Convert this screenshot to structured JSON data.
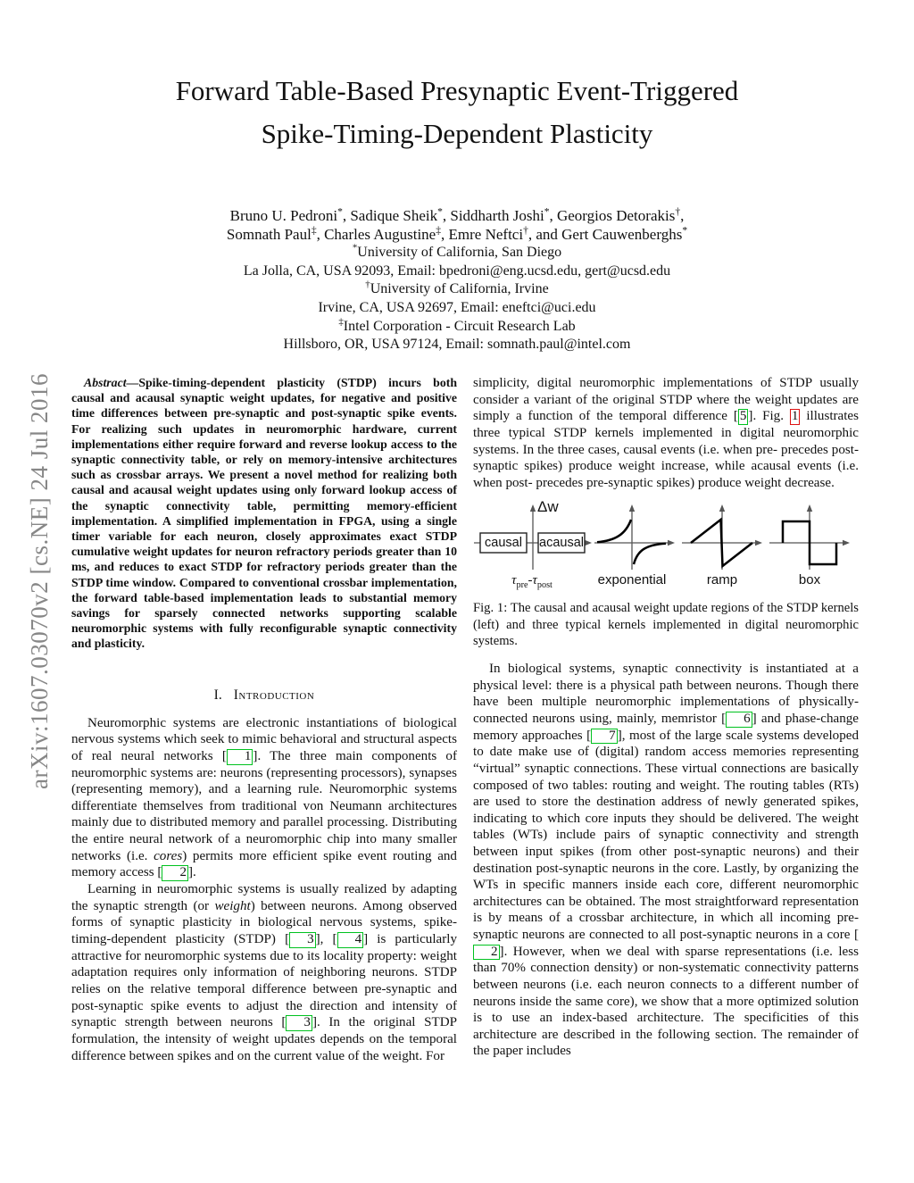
{
  "watermark": "arXiv:1607.03070v2  [cs.NE]  24 Jul 2016",
  "title_line1": "Forward Table-Based Presynaptic Event-Triggered",
  "title_line2": "Spike-Timing-Dependent Plasticity",
  "authors": {
    "lines": [
      [
        {
          "t": "Bruno U. Pedroni"
        },
        {
          "t": "*",
          "s": "sup"
        },
        {
          "t": ", Sadique Sheik"
        },
        {
          "t": "*",
          "s": "sup"
        },
        {
          "t": ", Siddharth Joshi"
        },
        {
          "t": "*",
          "s": "sup"
        },
        {
          "t": ", Georgios Detorakis"
        },
        {
          "t": "†",
          "s": "sup"
        },
        {
          "t": ","
        }
      ],
      [
        {
          "t": "Somnath Paul"
        },
        {
          "t": "‡",
          "s": "sup"
        },
        {
          "t": ", Charles Augustine"
        },
        {
          "t": "‡",
          "s": "sup"
        },
        {
          "t": ", Emre Neftci"
        },
        {
          "t": "†",
          "s": "sup"
        },
        {
          "t": ", and Gert Cauwenberghs"
        },
        {
          "t": "*",
          "s": "sup"
        }
      ],
      [
        {
          "t": "*",
          "s": "sup"
        },
        {
          "t": "University of California, San Diego"
        }
      ],
      [
        {
          "t": "La Jolla, CA, USA 92093, Email: bpedroni@eng.ucsd.edu, gert@ucsd.edu"
        }
      ],
      [
        {
          "t": "†",
          "s": "sup"
        },
        {
          "t": "University of California, Irvine"
        }
      ],
      [
        {
          "t": "Irvine, CA, USA 92697, Email: eneftci@uci.edu"
        }
      ],
      [
        {
          "t": "‡",
          "s": "sup"
        },
        {
          "t": "Intel Corporation - Circuit Research Lab"
        }
      ],
      [
        {
          "t": "Hillsboro, OR, USA 97124, Email: somnath.paul@intel.com"
        }
      ]
    ]
  },
  "abstract": {
    "segments": [
      {
        "t": "Abstract",
        "s": "bi"
      },
      {
        "t": "—Spike-timing-dependent plasticity (STDP) incurs both causal and acausal synaptic weight updates, for negative and positive time differences between pre-synaptic and post-synaptic spike events. For realizing such updates in neuromorphic hardware, current implementations either require forward and reverse lookup access to the synaptic connectivity table, or rely on memory-intensive architectures such as crossbar arrays. We present a novel method for realizing both causal and acausal weight updates using only forward lookup access of the synaptic connectivity table, permitting memory-efficient implementation. A simplified implementation in FPGA, using a single timer variable for each neuron, closely approximates exact STDP cumulative weight updates for neuron refractory periods greater than 10 ms, and reduces to exact STDP for refractory periods greater than the STDP time window. Compared to conventional crossbar implementation, the forward table-based implementation leads to substantial memory savings for sparsely connected networks supporting scalable neuromorphic systems with fully reconfigurable synaptic connectivity and plasticity."
      }
    ]
  },
  "section1": {
    "number": "I.",
    "title": "Introduction"
  },
  "paragraphs": {
    "intro_p1": [
      {
        "t": "Neuromorphic systems are electronic instantiations of biological nervous systems which seek to mimic behavioral and structural aspects of real neural networks "
      },
      {
        "t": "1",
        "s": "cite"
      },
      {
        "t": ". The three main components of neuromorphic systems are: neurons (representing processors), synapses (representing memory), and a learning rule. Neuromorphic systems differentiate themselves from traditional von Neumann architectures mainly due to distributed memory and parallel processing. Distributing the entire neural network of a neuromorphic chip into many smaller networks (i.e. "
      },
      {
        "t": "cores",
        "s": "i"
      },
      {
        "t": ") permits more efficient spike event routing and memory access "
      },
      {
        "t": "2",
        "s": "cite"
      },
      {
        "t": "."
      }
    ],
    "intro_p2": [
      {
        "t": "Learning in neuromorphic systems is usually realized by adapting the synaptic strength (or "
      },
      {
        "t": "weight",
        "s": "i"
      },
      {
        "t": ") between neurons. Among observed forms of synaptic plasticity in biological nervous systems, spike-timing-dependent plasticity (STDP) "
      },
      {
        "t": "3",
        "s": "cite"
      },
      {
        "t": ", "
      },
      {
        "t": "4",
        "s": "cite"
      },
      {
        "t": " is particularly attractive for neuromorphic systems due to its locality property: weight adaptation requires only information of neighboring neurons. STDP relies on the relative temporal difference between pre-synaptic and post-synaptic spike events to adjust the direction and intensity of synaptic strength between neurons "
      },
      {
        "t": "3",
        "s": "cite"
      },
      {
        "t": ". In the original STDP formulation, the intensity of weight updates depends on the temporal difference between spikes and on the current value of the weight. For"
      }
    ],
    "right_p1": [
      {
        "t": "simplicity, digital neuromorphic implementations of STDP usually consider a variant of the original STDP where the weight updates are simply a function of the temporal difference "
      },
      {
        "t": "5",
        "s": "cite"
      },
      {
        "t": ". Fig. "
      },
      {
        "t": "1",
        "s": "figref"
      },
      {
        "t": " illustrates three typical STDP kernels implemented in digital neuromorphic systems. In the three cases, causal events (i.e. when pre- precedes post-synaptic spikes) produce weight increase, while acausal events (i.e. when post- precedes pre-synaptic spikes) produce weight decrease."
      }
    ],
    "right_p2": [
      {
        "t": "In biological systems, synaptic connectivity is instantiated at a physical level: there is a physical path between neurons. Though there have been multiple neuromorphic implementations of physically-connected neurons using, mainly, memristor "
      },
      {
        "t": "6",
        "s": "cite"
      },
      {
        "t": " and phase-change memory approaches "
      },
      {
        "t": "7",
        "s": "cite"
      },
      {
        "t": ", most of the large scale systems developed to date make use of (digital) random access memories representing “virtual” synaptic connections. These virtual connections are basically composed of two tables: routing and weight. The routing tables (RTs) are used to store the destination address of newly generated spikes, indicating to which core inputs they should be delivered. The weight tables (WTs) include pairs of synaptic connectivity and strength between input spikes (from other post-synaptic neurons) and their destination post-synaptic neurons in the core. Lastly, by organizing the WTs in specific manners inside each core, different neuromorphic architectures can be obtained. The most straightforward representation is by means of a crossbar architecture, in which all incoming pre-synaptic neurons are connected to all post-synaptic neurons in a core "
      },
      {
        "t": "2",
        "s": "cite"
      },
      {
        "t": ". However, when we deal with sparse representations (i.e. less than 70% connection density) or non-systematic connectivity patterns between neurons (i.e. each neuron connects to a different number of neurons inside the same core), we show that a more optimized solution is to use an index-based architecture. The specificities of this architecture are described in the following section. The remainder of the paper includes"
      }
    ]
  },
  "figure": {
    "labels": {
      "dw": "Δw",
      "causal": "causal",
      "acausal": "acausal",
      "tau": [
        {
          "t": "τ",
          "s": "i"
        },
        {
          "t": "pre",
          "s": "sub"
        },
        {
          "t": "-"
        },
        {
          "t": "τ",
          "s": "i"
        },
        {
          "t": "post",
          "s": "sub"
        }
      ],
      "kernel1": "exponential",
      "kernel2": "ramp",
      "kernel3": "box"
    },
    "caption": "Fig. 1: The causal and acausal weight update regions of the STDP kernels (left) and three typical kernels implemented in digital neuromorphic systems."
  },
  "colors": {
    "citation_green": "#00c21f",
    "figref_red": "#dd1111",
    "watermark_gray": "#878787",
    "axis_gray": "#555555",
    "curve_black": "#000000"
  }
}
